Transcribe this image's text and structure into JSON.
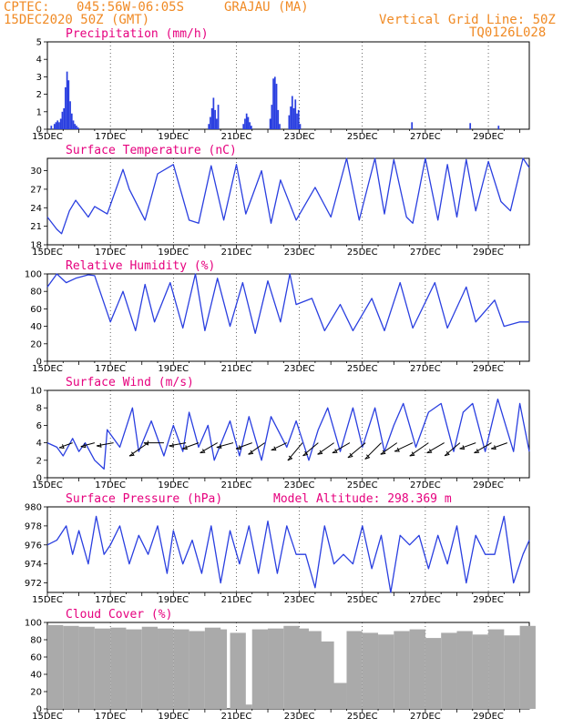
{
  "header": {
    "source": "CPTEC:",
    "coords": "045:56W-06:05S",
    "station": "GRAJAU (MA)",
    "date": "15DEC2020 50Z (GMT)",
    "grid_note": "Vertical Grid Line: 50Z",
    "code": "TQ0126L028"
  },
  "colors": {
    "line": "#2a3fe0",
    "bar": "#2a3fe0",
    "cloud": "#aaaaaa",
    "title": "#e6007e",
    "header": "#f08a24"
  },
  "chart_data": [
    {
      "type": "bar",
      "title": "Precipitation (mm/h)",
      "ylim": [
        0,
        5
      ],
      "yticks": [
        "0",
        "1",
        "2",
        "3",
        "4",
        "5"
      ],
      "xlabels": [
        "15DEC",
        "17DEC",
        "19DEC",
        "21DEC",
        "23DEC",
        "25DEC",
        "27DEC",
        "29DEC"
      ],
      "xrange_days": [
        0,
        15.3
      ],
      "x": [
        0.1,
        0.2,
        0.25,
        0.3,
        0.35,
        0.4,
        0.45,
        0.5,
        0.55,
        0.6,
        0.65,
        0.7,
        0.75,
        0.8,
        0.85,
        0.9,
        0.95,
        5.1,
        5.15,
        5.2,
        5.25,
        5.3,
        5.35,
        5.4,
        6.2,
        6.25,
        6.3,
        6.35,
        6.4,
        6.45,
        7.05,
        7.1,
        7.15,
        7.2,
        7.25,
        7.3,
        7.35,
        7.65,
        7.7,
        7.75,
        7.8,
        7.85,
        7.9,
        7.95,
        8.0,
        11.55,
        13.4,
        14.3
      ],
      "values": [
        0.2,
        0.3,
        0.4,
        0.5,
        0.4,
        0.6,
        1.0,
        1.2,
        2.4,
        3.3,
        2.8,
        1.6,
        0.9,
        0.5,
        0.3,
        0.2,
        0.1,
        0.3,
        0.7,
        1.2,
        1.8,
        1.1,
        0.6,
        1.4,
        0.3,
        0.6,
        0.9,
        0.7,
        0.4,
        0.2,
        0.6,
        1.4,
        2.9,
        3.0,
        2.6,
        1.1,
        0.3,
        0.8,
        1.3,
        1.9,
        1.2,
        1.7,
        0.9,
        1.1,
        0.3,
        0.4,
        0.35,
        0.2
      ]
    },
    {
      "type": "line",
      "title": "Surface Temperature (nC)",
      "ylim": [
        18,
        32
      ],
      "yticks": [
        "18",
        "21",
        "24",
        "27",
        "30"
      ],
      "xlabels": [
        "15DEC",
        "17DEC",
        "19DEC",
        "21DEC",
        "23DEC",
        "25DEC",
        "27DEC",
        "29DEC"
      ],
      "x": [
        0,
        0.3,
        0.45,
        0.7,
        0.9,
        1.3,
        1.5,
        1.9,
        2.4,
        2.6,
        3.1,
        3.5,
        4.0,
        4.5,
        4.8,
        5.2,
        5.6,
        6.0,
        6.3,
        6.8,
        7.1,
        7.4,
        7.9,
        8.5,
        9.0,
        9.5,
        9.9,
        10.4,
        10.7,
        11.0,
        11.4,
        11.6,
        12.0,
        12.4,
        12.7,
        13.0,
        13.3,
        13.6,
        14.0,
        14.4,
        14.7,
        15.1,
        15.3
      ],
      "values": [
        22.5,
        20.5,
        19.8,
        23.5,
        25.2,
        22.5,
        24.2,
        23.0,
        30.2,
        27.0,
        22.0,
        29.5,
        31.0,
        22.0,
        21.5,
        30.8,
        22.0,
        31.0,
        23.0,
        30.0,
        21.5,
        28.5,
        22.0,
        27.3,
        22.5,
        32.0,
        22.0,
        32.0,
        23.0,
        31.8,
        22.5,
        21.5,
        32.0,
        22.0,
        31.0,
        22.5,
        31.8,
        23.5,
        31.5,
        25.0,
        23.5,
        32.0,
        30.5
      ]
    },
    {
      "type": "line",
      "title": "Relative Humidity (%)",
      "ylim": [
        0,
        100
      ],
      "yticks": [
        "0",
        "20",
        "40",
        "60",
        "80",
        "100"
      ],
      "xlabels": [
        "15DEC",
        "17DEC",
        "19DEC",
        "21DEC",
        "23DEC",
        "25DEC",
        "27DEC",
        "29DEC"
      ],
      "x": [
        0,
        0.3,
        0.6,
        0.9,
        1.3,
        1.5,
        2.0,
        2.4,
        2.8,
        3.1,
        3.4,
        3.9,
        4.3,
        4.7,
        5.0,
        5.4,
        5.8,
        6.2,
        6.6,
        7.0,
        7.4,
        7.7,
        7.9,
        8.4,
        8.8,
        9.3,
        9.7,
        10.3,
        10.7,
        11.2,
        11.6,
        12.3,
        12.7,
        13.3,
        13.6,
        14.2,
        14.5,
        15.0,
        15.3
      ],
      "values": [
        85,
        100,
        90,
        95,
        99,
        98,
        45,
        80,
        35,
        88,
        45,
        90,
        38,
        100,
        35,
        95,
        40,
        90,
        32,
        92,
        45,
        100,
        65,
        72,
        35,
        65,
        35,
        72,
        35,
        90,
        38,
        90,
        38,
        85,
        45,
        70,
        40,
        45,
        45
      ]
    },
    {
      "type": "line",
      "title": "Surface Wind (m/s)",
      "ylim": [
        0,
        10
      ],
      "yticks": [
        "0",
        "2",
        "4",
        "6",
        "8",
        "10"
      ],
      "xlabels": [
        "15DEC",
        "17DEC",
        "19DEC",
        "21DEC",
        "23DEC",
        "25DEC",
        "27DEC",
        "29DEC"
      ],
      "x": [
        0,
        0.3,
        0.5,
        0.8,
        1.0,
        1.2,
        1.5,
        1.8,
        1.9,
        2.3,
        2.7,
        2.9,
        3.3,
        3.7,
        4.0,
        4.3,
        4.5,
        4.8,
        5.1,
        5.3,
        5.8,
        6.1,
        6.4,
        6.8,
        7.1,
        7.6,
        7.9,
        8.3,
        8.6,
        8.9,
        9.3,
        9.7,
        10.0,
        10.4,
        10.7,
        11.0,
        11.3,
        11.7,
        12.1,
        12.5,
        12.9,
        13.2,
        13.5,
        13.9,
        14.3,
        14.8,
        15.0,
        15.3
      ],
      "values": [
        4,
        3.5,
        2.5,
        4.5,
        3.0,
        4.0,
        2.0,
        1.0,
        5.5,
        3.5,
        8.0,
        3.0,
        6.5,
        2.5,
        6.0,
        3.0,
        7.5,
        3.5,
        6.0,
        2.0,
        6.5,
        2.5,
        7.0,
        2.0,
        7.0,
        3.5,
        6.5,
        2.0,
        5.5,
        8.0,
        3.0,
        8.0,
        3.5,
        8.0,
        3.0,
        6.0,
        8.5,
        3.5,
        7.5,
        8.5,
        3.0,
        7.5,
        8.5,
        3.0,
        9.0,
        3.0,
        8.5,
        3.0
      ],
      "barbs_x": [
        0.8,
        1.5,
        2.1,
        3.2,
        3.7,
        4.4,
        4.8,
        5.4,
        5.9,
        6.5,
        6.9,
        7.6,
        8.1,
        8.6,
        9.1,
        9.6,
        10.1,
        10.6,
        11.1,
        11.6,
        12.1,
        12.6,
        13.1,
        13.6,
        14.1,
        14.6
      ],
      "barbs_angle_deg": [
        200,
        195,
        190,
        215,
        180,
        190,
        200,
        210,
        195,
        200,
        215,
        205,
        230,
        220,
        215,
        210,
        220,
        225,
        215,
        205,
        215,
        210,
        220,
        200,
        210,
        200
      ],
      "barbs_speed": [
        3,
        3,
        4,
        6,
        5,
        4,
        4,
        5,
        4,
        4,
        5,
        4,
        6,
        5,
        5,
        5,
        6,
        6,
        5,
        5,
        6,
        5,
        5,
        4,
        5,
        4
      ]
    },
    {
      "type": "line",
      "title": "Surface Pressure (hPa)",
      "subtitle": "Model Altitude: 298.369 m",
      "ylim": [
        971,
        980
      ],
      "yticks": [
        "972",
        "974",
        "976",
        "978",
        "980"
      ],
      "xlabels": [
        "15DEC",
        "17DEC",
        "19DEC",
        "21DEC",
        "23DEC",
        "25DEC",
        "27DEC",
        "29DEC"
      ],
      "x": [
        0,
        0.3,
        0.6,
        0.8,
        1.0,
        1.3,
        1.55,
        1.8,
        2.0,
        2.3,
        2.6,
        2.9,
        3.2,
        3.5,
        3.8,
        4.0,
        4.3,
        4.6,
        4.9,
        5.2,
        5.5,
        5.8,
        6.1,
        6.4,
        6.7,
        7.0,
        7.3,
        7.6,
        7.9,
        8.2,
        8.5,
        8.8,
        9.1,
        9.4,
        9.7,
        10.0,
        10.3,
        10.6,
        10.9,
        11.2,
        11.5,
        11.8,
        12.1,
        12.4,
        12.7,
        13.0,
        13.3,
        13.6,
        13.9,
        14.2,
        14.5,
        14.8,
        15.1,
        15.3
      ],
      "values": [
        976,
        976.5,
        978,
        975,
        977.5,
        974,
        979,
        975,
        976,
        978,
        974,
        977,
        975,
        978,
        973,
        977.5,
        974,
        976.5,
        973,
        978,
        972,
        977.5,
        974,
        978,
        973,
        978.5,
        973,
        978,
        975,
        975,
        971.5,
        978,
        974,
        975,
        974,
        978,
        973.5,
        977,
        971,
        977,
        976,
        977,
        973.5,
        977,
        974,
        978,
        972,
        977,
        975,
        975,
        979,
        972,
        975,
        976.5
      ]
    },
    {
      "type": "bar",
      "title": "Cloud Cover (%)",
      "ylim": [
        0,
        100
      ],
      "yticks": [
        "0",
        "20",
        "40",
        "60",
        "80",
        "100"
      ],
      "xlabels": [
        "15DEC",
        "17DEC",
        "19DEC",
        "21DEC",
        "23DEC",
        "25DEC",
        "27DEC",
        "29DEC"
      ],
      "x": [
        0,
        0.5,
        1.0,
        1.5,
        2.0,
        2.5,
        3.0,
        3.5,
        4.0,
        4.5,
        5.0,
        5.2,
        5.8,
        6.0,
        6.5,
        7.0,
        7.5,
        7.8,
        8.2,
        8.6,
        9.0,
        9.5,
        10.0,
        10.5,
        11.0,
        11.5,
        12.0,
        12.5,
        13.0,
        13.5,
        14.0,
        14.5,
        15.0
      ],
      "values": [
        97,
        96,
        95,
        93,
        94,
        92,
        95,
        93,
        92,
        90,
        94,
        92,
        88,
        5,
        92,
        93,
        96,
        93,
        90,
        78,
        30,
        90,
        88,
        86,
        90,
        92,
        82,
        88,
        90,
        86,
        92,
        85,
        96
      ]
    }
  ]
}
